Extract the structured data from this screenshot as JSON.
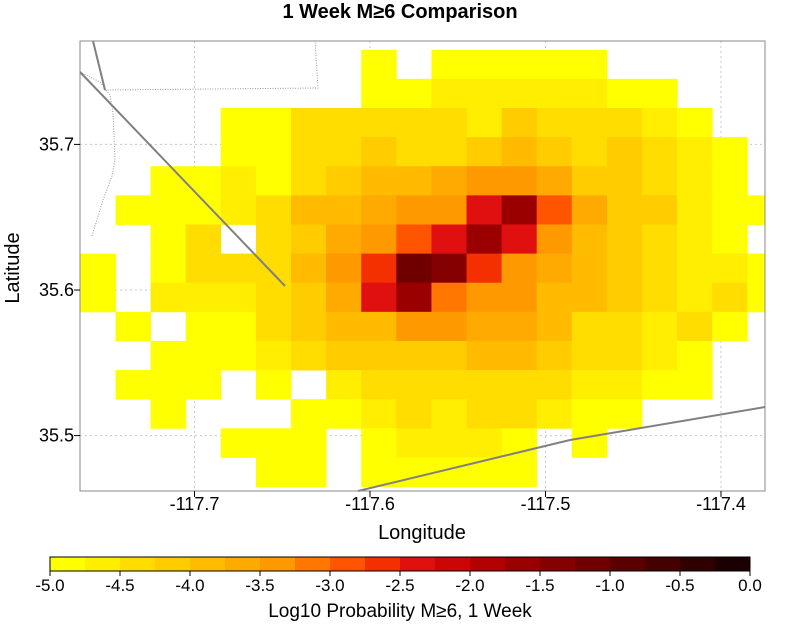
{
  "chart_data": {
    "type": "heatmap",
    "title": "1 Week M≥6 Comparison",
    "xlabel": "Longitude",
    "ylabel": "Latitude",
    "xlim": [
      -117.765,
      -117.372
    ],
    "ylim": [
      35.465,
      35.672
    ],
    "cell_size": 0.02,
    "xticks": [
      -117.7,
      -117.6,
      -117.5,
      -117.4
    ],
    "xtick_labels": [
      "-117.7",
      "-117.6",
      "-117.5",
      "-117.4"
    ],
    "yticks": [
      35.5,
      35.6,
      35.7
    ],
    "ytick_labels": [
      "35.5",
      "35.6",
      "35.7"
    ],
    "grid": true,
    "row_lats": [
      35.755,
      35.735,
      35.715,
      35.695,
      35.675,
      35.655,
      35.635,
      35.615,
      35.595,
      35.575,
      35.555,
      35.535,
      35.515,
      35.495,
      35.475
    ],
    "col_lons": [
      -117.755,
      -117.735,
      -117.715,
      -117.695,
      -117.675,
      -117.655,
      -117.635,
      -117.615,
      -117.595,
      -117.575,
      -117.555,
      -117.535,
      -117.515,
      -117.495,
      -117.475,
      -117.455,
      -117.435,
      -117.415,
      -117.395,
      -117.375
    ],
    "values": [
      [
        null,
        null,
        null,
        null,
        null,
        null,
        null,
        null,
        -5.0,
        null,
        -5.0,
        -5.0,
        -4.9,
        -5.0,
        -4.8,
        null,
        null,
        null,
        null,
        null
      ],
      [
        null,
        null,
        null,
        null,
        null,
        null,
        null,
        null,
        -4.8,
        -4.8,
        -4.7,
        -4.7,
        -4.6,
        -4.6,
        -4.7,
        -5.0,
        -4.8,
        null,
        null,
        null
      ],
      [
        null,
        null,
        null,
        null,
        -4.9,
        -4.8,
        -4.5,
        -4.5,
        -4.4,
        -4.4,
        -4.3,
        -4.6,
        -4.2,
        -4.3,
        -4.5,
        -4.4,
        -4.7,
        -4.8,
        null,
        null
      ],
      [
        null,
        null,
        null,
        null,
        -4.9,
        -4.8,
        -4.5,
        -4.3,
        -4.2,
        -4.4,
        -4.3,
        -4.1,
        -3.9,
        -4.2,
        -4.4,
        -4.2,
        -4.4,
        -4.6,
        -4.9,
        null
      ],
      [
        null,
        null,
        -5.0,
        -4.8,
        -4.7,
        -4.8,
        -4.3,
        -4.1,
        -4.0,
        -3.9,
        -3.6,
        -3.3,
        -3.3,
        -3.6,
        -4.1,
        -4.1,
        -4.5,
        -4.6,
        -4.8,
        null
      ],
      [
        null,
        -4.9,
        -5.0,
        -4.9,
        -4.7,
        -4.4,
        -4.0,
        -3.9,
        -3.7,
        -3.5,
        -3.3,
        -2.4,
        -1.6,
        -3.0,
        -3.6,
        -4.2,
        -4.1,
        -4.6,
        -4.8,
        -4.9
      ],
      [
        null,
        null,
        -4.9,
        -4.5,
        null,
        -4.5,
        -4.1,
        -3.7,
        -3.5,
        -2.9,
        -2.4,
        -1.7,
        -2.5,
        -3.4,
        -3.8,
        -4.2,
        -4.5,
        -4.6,
        -4.9,
        null
      ],
      [
        -4.9,
        null,
        -4.8,
        -4.4,
        -4.4,
        -4.3,
        -4.0,
        -3.3,
        -2.7,
        -1.2,
        -1.4,
        -2.6,
        -3.3,
        -3.6,
        -3.9,
        -4.2,
        -4.3,
        -4.6,
        -4.7,
        -4.9
      ],
      [
        -5.0,
        null,
        -4.7,
        -4.7,
        -4.6,
        -4.4,
        -4.2,
        -3.6,
        -2.3,
        -1.6,
        -3.1,
        -3.3,
        -3.5,
        -3.8,
        -4.0,
        -4.2,
        -4.3,
        -4.7,
        -4.5,
        -4.8
      ],
      [
        null,
        -5.0,
        null,
        -4.9,
        -4.8,
        -4.5,
        -4.2,
        -4.0,
        -3.8,
        -3.3,
        -3.4,
        -3.6,
        -3.6,
        -4.0,
        -4.3,
        -4.4,
        -4.6,
        -4.5,
        -4.8,
        null
      ],
      [
        null,
        null,
        -4.8,
        -4.8,
        -5.0,
        -4.7,
        -4.3,
        -4.2,
        -4.2,
        -4.1,
        -4.1,
        -4.0,
        -4.0,
        -4.2,
        -4.3,
        -4.5,
        -4.7,
        -4.8,
        null,
        null
      ],
      [
        null,
        -5.0,
        -4.8,
        -4.8,
        null,
        -4.9,
        null,
        -4.7,
        -4.5,
        -4.5,
        -4.5,
        -4.5,
        -4.4,
        -4.5,
        -4.7,
        -4.6,
        -4.9,
        -4.9,
        null,
        null
      ],
      [
        null,
        null,
        -5.0,
        null,
        null,
        null,
        -4.9,
        -4.8,
        -4.6,
        -4.4,
        -4.6,
        -4.5,
        -4.5,
        -4.6,
        -4.8,
        -4.9,
        null,
        null,
        null,
        null
      ],
      [
        null,
        null,
        null,
        null,
        -4.9,
        -4.8,
        -4.9,
        null,
        -4.8,
        -4.7,
        -4.7,
        -4.7,
        -4.8,
        null,
        -4.8,
        null,
        null,
        null,
        null,
        null
      ],
      [
        null,
        null,
        null,
        null,
        null,
        -5.0,
        -5.0,
        null,
        -5.0,
        -4.9,
        -5.0,
        -5.0,
        -5.0,
        null,
        null,
        null,
        null,
        null,
        null,
        null
      ]
    ],
    "colorbar": {
      "label": "Log10 Probability M≥6, 1 Week",
      "range": [
        -5.0,
        0.0
      ],
      "ticks": [
        -5.0,
        -4.5,
        -4.0,
        -3.5,
        -3.0,
        -2.5,
        -2.0,
        -1.5,
        -1.0,
        -0.5,
        0.0
      ],
      "tick_labels": [
        "-5.0",
        "-4.5",
        "-4.0",
        "-3.5",
        "-3.0",
        "-2.5",
        "-2.0",
        "-1.5",
        "-1.0",
        "-0.5",
        "0.0"
      ],
      "colors": [
        "#ffff00",
        "#ffee00",
        "#ffdd00",
        "#ffcc00",
        "#ffbb00",
        "#ffaa00",
        "#ff9900",
        "#ff7700",
        "#ff5500",
        "#f53000",
        "#e01010",
        "#cc0606",
        "#b30000",
        "#9a0000",
        "#850000",
        "#700000",
        "#5a0000",
        "#450000",
        "#300000",
        "#1a0000"
      ]
    },
    "fault_color": "#808080",
    "border_color": "#909090"
  }
}
